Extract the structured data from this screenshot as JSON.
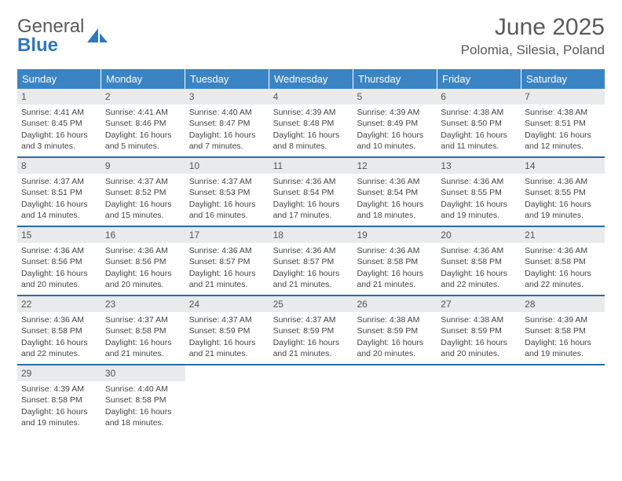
{
  "brand": {
    "word1": "General",
    "word2": "Blue"
  },
  "title": "June 2025",
  "location": "Polomia, Silesia, Poland",
  "colors": {
    "header_bg": "#3b84c4",
    "header_text": "#ffffff",
    "daynum_bg": "#e9eaec",
    "week_border": "#2f6aa0",
    "logo_blue": "#2f78bd",
    "text_gray": "#5a5a5a"
  },
  "day_names": [
    "Sunday",
    "Monday",
    "Tuesday",
    "Wednesday",
    "Thursday",
    "Friday",
    "Saturday"
  ],
  "weeks": [
    [
      {
        "d": "1",
        "sr": "4:41 AM",
        "ss": "8:45 PM",
        "dl": "16 hours and 3 minutes."
      },
      {
        "d": "2",
        "sr": "4:41 AM",
        "ss": "8:46 PM",
        "dl": "16 hours and 5 minutes."
      },
      {
        "d": "3",
        "sr": "4:40 AM",
        "ss": "8:47 PM",
        "dl": "16 hours and 7 minutes."
      },
      {
        "d": "4",
        "sr": "4:39 AM",
        "ss": "8:48 PM",
        "dl": "16 hours and 8 minutes."
      },
      {
        "d": "5",
        "sr": "4:39 AM",
        "ss": "8:49 PM",
        "dl": "16 hours and 10 minutes."
      },
      {
        "d": "6",
        "sr": "4:38 AM",
        "ss": "8:50 PM",
        "dl": "16 hours and 11 minutes."
      },
      {
        "d": "7",
        "sr": "4:38 AM",
        "ss": "8:51 PM",
        "dl": "16 hours and 12 minutes."
      }
    ],
    [
      {
        "d": "8",
        "sr": "4:37 AM",
        "ss": "8:51 PM",
        "dl": "16 hours and 14 minutes."
      },
      {
        "d": "9",
        "sr": "4:37 AM",
        "ss": "8:52 PM",
        "dl": "16 hours and 15 minutes."
      },
      {
        "d": "10",
        "sr": "4:37 AM",
        "ss": "8:53 PM",
        "dl": "16 hours and 16 minutes."
      },
      {
        "d": "11",
        "sr": "4:36 AM",
        "ss": "8:54 PM",
        "dl": "16 hours and 17 minutes."
      },
      {
        "d": "12",
        "sr": "4:36 AM",
        "ss": "8:54 PM",
        "dl": "16 hours and 18 minutes."
      },
      {
        "d": "13",
        "sr": "4:36 AM",
        "ss": "8:55 PM",
        "dl": "16 hours and 19 minutes."
      },
      {
        "d": "14",
        "sr": "4:36 AM",
        "ss": "8:55 PM",
        "dl": "16 hours and 19 minutes."
      }
    ],
    [
      {
        "d": "15",
        "sr": "4:36 AM",
        "ss": "8:56 PM",
        "dl": "16 hours and 20 minutes."
      },
      {
        "d": "16",
        "sr": "4:36 AM",
        "ss": "8:56 PM",
        "dl": "16 hours and 20 minutes."
      },
      {
        "d": "17",
        "sr": "4:36 AM",
        "ss": "8:57 PM",
        "dl": "16 hours and 21 minutes."
      },
      {
        "d": "18",
        "sr": "4:36 AM",
        "ss": "8:57 PM",
        "dl": "16 hours and 21 minutes."
      },
      {
        "d": "19",
        "sr": "4:36 AM",
        "ss": "8:58 PM",
        "dl": "16 hours and 21 minutes."
      },
      {
        "d": "20",
        "sr": "4:36 AM",
        "ss": "8:58 PM",
        "dl": "16 hours and 22 minutes."
      },
      {
        "d": "21",
        "sr": "4:36 AM",
        "ss": "8:58 PM",
        "dl": "16 hours and 22 minutes."
      }
    ],
    [
      {
        "d": "22",
        "sr": "4:36 AM",
        "ss": "8:58 PM",
        "dl": "16 hours and 22 minutes."
      },
      {
        "d": "23",
        "sr": "4:37 AM",
        "ss": "8:58 PM",
        "dl": "16 hours and 21 minutes."
      },
      {
        "d": "24",
        "sr": "4:37 AM",
        "ss": "8:59 PM",
        "dl": "16 hours and 21 minutes."
      },
      {
        "d": "25",
        "sr": "4:37 AM",
        "ss": "8:59 PM",
        "dl": "16 hours and 21 minutes."
      },
      {
        "d": "26",
        "sr": "4:38 AM",
        "ss": "8:59 PM",
        "dl": "16 hours and 20 minutes."
      },
      {
        "d": "27",
        "sr": "4:38 AM",
        "ss": "8:59 PM",
        "dl": "16 hours and 20 minutes."
      },
      {
        "d": "28",
        "sr": "4:39 AM",
        "ss": "8:58 PM",
        "dl": "16 hours and 19 minutes."
      }
    ],
    [
      {
        "d": "29",
        "sr": "4:39 AM",
        "ss": "8:58 PM",
        "dl": "16 hours and 19 minutes."
      },
      {
        "d": "30",
        "sr": "4:40 AM",
        "ss": "8:58 PM",
        "dl": "16 hours and 18 minutes."
      },
      null,
      null,
      null,
      null,
      null
    ]
  ],
  "labels": {
    "sunrise": "Sunrise: ",
    "sunset": "Sunset: ",
    "daylight": "Daylight: "
  }
}
